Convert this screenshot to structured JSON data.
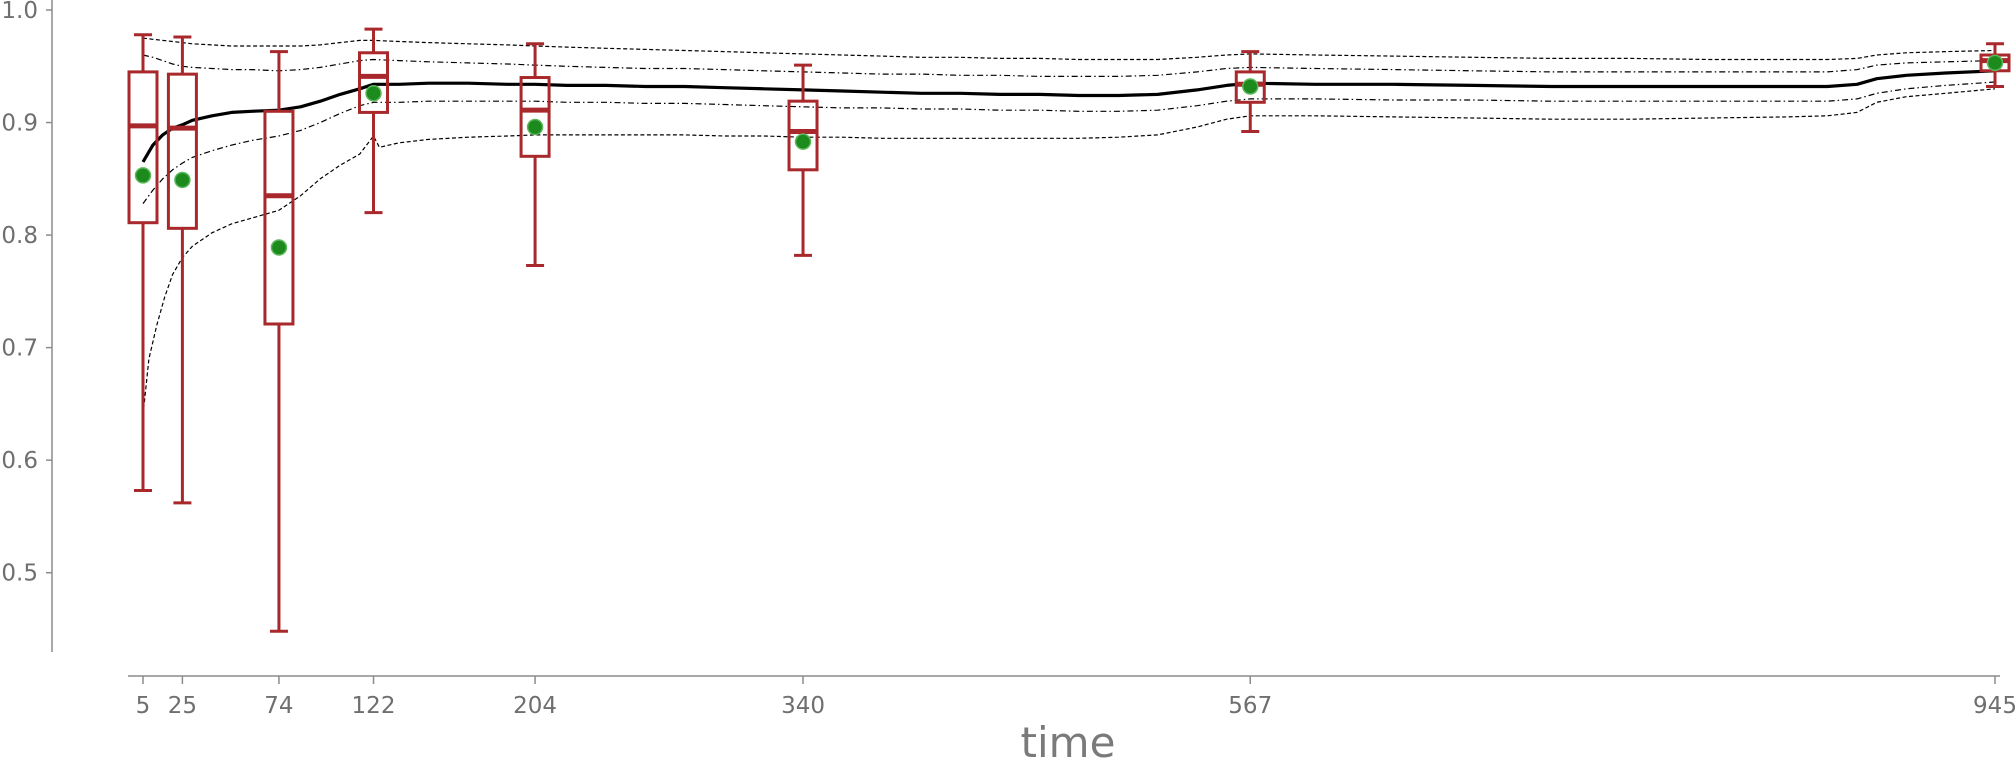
{
  "chart_data": {
    "type": "box",
    "xlabel": "time",
    "ylabel": "",
    "xlim": [
      -5,
      950
    ],
    "ylim": [
      0.41,
      1.0
    ],
    "x_ticks": [
      5,
      25,
      74,
      122,
      204,
      340,
      567,
      945
    ],
    "y_ticks": [
      0.5,
      0.6,
      0.7,
      0.8,
      0.9,
      1.0
    ],
    "y_tick_labels": [
      "0.5",
      "0.6",
      "0.7",
      "0.8",
      "0.9",
      "1.0"
    ],
    "box_color": "#a8282b",
    "mean_color": "#1d8a1d",
    "boxes": [
      {
        "x": 5,
        "whisker_low": 0.573,
        "q1": 0.811,
        "median": 0.897,
        "q3": 0.945,
        "whisker_high": 0.978,
        "mean": 0.853
      },
      {
        "x": 25,
        "whisker_low": 0.562,
        "q1": 0.806,
        "median": 0.895,
        "q3": 0.943,
        "whisker_high": 0.976,
        "mean": 0.849
      },
      {
        "x": 74,
        "whisker_low": 0.448,
        "q1": 0.721,
        "median": 0.835,
        "q3": 0.91,
        "whisker_high": 0.963,
        "mean": 0.789
      },
      {
        "x": 122,
        "whisker_low": 0.82,
        "q1": 0.909,
        "median": 0.941,
        "q3": 0.962,
        "whisker_high": 0.983,
        "mean": 0.926
      },
      {
        "x": 204,
        "whisker_low": 0.773,
        "q1": 0.87,
        "median": 0.911,
        "q3": 0.94,
        "whisker_high": 0.97,
        "mean": 0.896
      },
      {
        "x": 340,
        "whisker_low": 0.782,
        "q1": 0.858,
        "median": 0.892,
        "q3": 0.919,
        "whisker_high": 0.951,
        "mean": 0.883
      },
      {
        "x": 567,
        "whisker_low": 0.892,
        "q1": 0.918,
        "median": 0.934,
        "q3": 0.945,
        "whisker_high": 0.963,
        "mean": 0.932
      },
      {
        "x": 945,
        "whisker_low": 0.932,
        "q1": 0.946,
        "median": 0.955,
        "q3": 0.96,
        "whisker_high": 0.97,
        "mean": 0.953
      }
    ],
    "lines": [
      {
        "style": "solid",
        "x": [
          5,
          10,
          15,
          20,
          25,
          30,
          40,
          50,
          60,
          74,
          85,
          95,
          105,
          115,
          122,
          135,
          150,
          170,
          190,
          204,
          220,
          240,
          260,
          280,
          300,
          320,
          340,
          360,
          380,
          400,
          420,
          440,
          460,
          480,
          500,
          520,
          540,
          555,
          567,
          600,
          640,
          680,
          720,
          760,
          800,
          840,
          860,
          875,
          885,
          900,
          920,
          945
        ],
        "y": [
          0.865,
          0.88,
          0.889,
          0.895,
          0.898,
          0.902,
          0.906,
          0.909,
          0.91,
          0.911,
          0.914,
          0.919,
          0.925,
          0.93,
          0.934,
          0.934,
          0.935,
          0.935,
          0.934,
          0.934,
          0.933,
          0.933,
          0.932,
          0.932,
          0.931,
          0.93,
          0.929,
          0.928,
          0.927,
          0.926,
          0.926,
          0.925,
          0.925,
          0.924,
          0.924,
          0.925,
          0.929,
          0.933,
          0.935,
          0.934,
          0.934,
          0.933,
          0.932,
          0.932,
          0.932,
          0.932,
          0.932,
          0.934,
          0.939,
          0.942,
          0.944,
          0.946
        ]
      },
      {
        "style": "dashdot",
        "x": [
          5,
          10,
          15,
          20,
          25,
          30,
          40,
          50,
          60,
          74,
          85,
          95,
          105,
          115,
          122,
          135,
          150,
          170,
          190,
          204,
          220,
          240,
          260,
          280,
          300,
          320,
          340,
          360,
          380,
          400,
          420,
          440,
          460,
          480,
          500,
          520,
          540,
          555,
          567,
          600,
          640,
          680,
          720,
          760,
          800,
          840,
          860,
          875,
          885,
          900,
          920,
          945
        ],
        "y": [
          0.96,
          0.958,
          0.955,
          0.952,
          0.95,
          0.949,
          0.948,
          0.947,
          0.947,
          0.946,
          0.947,
          0.949,
          0.952,
          0.955,
          0.956,
          0.955,
          0.954,
          0.953,
          0.952,
          0.951,
          0.95,
          0.949,
          0.948,
          0.948,
          0.947,
          0.946,
          0.945,
          0.944,
          0.943,
          0.943,
          0.942,
          0.942,
          0.941,
          0.941,
          0.941,
          0.942,
          0.945,
          0.948,
          0.949,
          0.948,
          0.947,
          0.946,
          0.945,
          0.945,
          0.945,
          0.945,
          0.945,
          0.947,
          0.951,
          0.953,
          0.954,
          0.955
        ]
      },
      {
        "style": "dashdot",
        "x": [
          5,
          10,
          15,
          20,
          25,
          30,
          40,
          50,
          60,
          74,
          85,
          95,
          105,
          115,
          122,
          135,
          150,
          170,
          190,
          204,
          220,
          240,
          260,
          280,
          300,
          320,
          340,
          360,
          380,
          400,
          420,
          440,
          460,
          480,
          500,
          520,
          540,
          555,
          567,
          600,
          640,
          680,
          720,
          760,
          800,
          840,
          860,
          875,
          885,
          900,
          920,
          945
        ],
        "y": [
          0.828,
          0.84,
          0.85,
          0.858,
          0.864,
          0.869,
          0.875,
          0.88,
          0.884,
          0.888,
          0.893,
          0.9,
          0.908,
          0.915,
          0.918,
          0.918,
          0.919,
          0.919,
          0.919,
          0.919,
          0.918,
          0.918,
          0.917,
          0.917,
          0.916,
          0.915,
          0.914,
          0.913,
          0.913,
          0.912,
          0.912,
          0.911,
          0.911,
          0.91,
          0.91,
          0.911,
          0.915,
          0.919,
          0.921,
          0.921,
          0.92,
          0.92,
          0.919,
          0.919,
          0.919,
          0.919,
          0.919,
          0.921,
          0.926,
          0.93,
          0.933,
          0.936
        ]
      },
      {
        "style": "dashed",
        "x": [
          5,
          10,
          15,
          20,
          25,
          30,
          40,
          50,
          60,
          74,
          85,
          95,
          105,
          115,
          122,
          135,
          150,
          170,
          190,
          204,
          220,
          240,
          260,
          280,
          300,
          320,
          340,
          360,
          380,
          400,
          420,
          440,
          460,
          480,
          500,
          520,
          540,
          555,
          567,
          600,
          640,
          680,
          720,
          760,
          800,
          840,
          860,
          875,
          885,
          900,
          920,
          945
        ],
        "y": [
          0.975,
          0.974,
          0.973,
          0.972,
          0.971,
          0.97,
          0.969,
          0.968,
          0.968,
          0.968,
          0.968,
          0.969,
          0.971,
          0.973,
          0.973,
          0.972,
          0.971,
          0.97,
          0.969,
          0.968,
          0.967,
          0.966,
          0.965,
          0.964,
          0.963,
          0.962,
          0.961,
          0.96,
          0.959,
          0.958,
          0.958,
          0.957,
          0.957,
          0.956,
          0.956,
          0.956,
          0.958,
          0.96,
          0.961,
          0.96,
          0.959,
          0.958,
          0.957,
          0.957,
          0.956,
          0.956,
          0.956,
          0.957,
          0.96,
          0.962,
          0.963,
          0.964
        ]
      },
      {
        "style": "dashed",
        "x": [
          5,
          8,
          12,
          16,
          20,
          25,
          30,
          40,
          50,
          60,
          74,
          85,
          95,
          105,
          115,
          122,
          125,
          135,
          150,
          170,
          190,
          204,
          220,
          240,
          260,
          280,
          300,
          320,
          340,
          360,
          380,
          400,
          420,
          440,
          460,
          480,
          500,
          520,
          540,
          555,
          567,
          600,
          640,
          680,
          720,
          760,
          800,
          840,
          860,
          875,
          885,
          900,
          920,
          945
        ],
        "y": [
          0.64,
          0.69,
          0.72,
          0.745,
          0.765,
          0.78,
          0.79,
          0.802,
          0.81,
          0.815,
          0.822,
          0.835,
          0.85,
          0.862,
          0.872,
          0.888,
          0.878,
          0.882,
          0.885,
          0.887,
          0.888,
          0.889,
          0.889,
          0.889,
          0.889,
          0.889,
          0.888,
          0.888,
          0.887,
          0.887,
          0.886,
          0.886,
          0.886,
          0.886,
          0.886,
          0.886,
          0.887,
          0.889,
          0.896,
          0.903,
          0.906,
          0.906,
          0.905,
          0.904,
          0.903,
          0.903,
          0.904,
          0.905,
          0.906,
          0.909,
          0.918,
          0.923,
          0.926,
          0.93
        ]
      }
    ]
  }
}
